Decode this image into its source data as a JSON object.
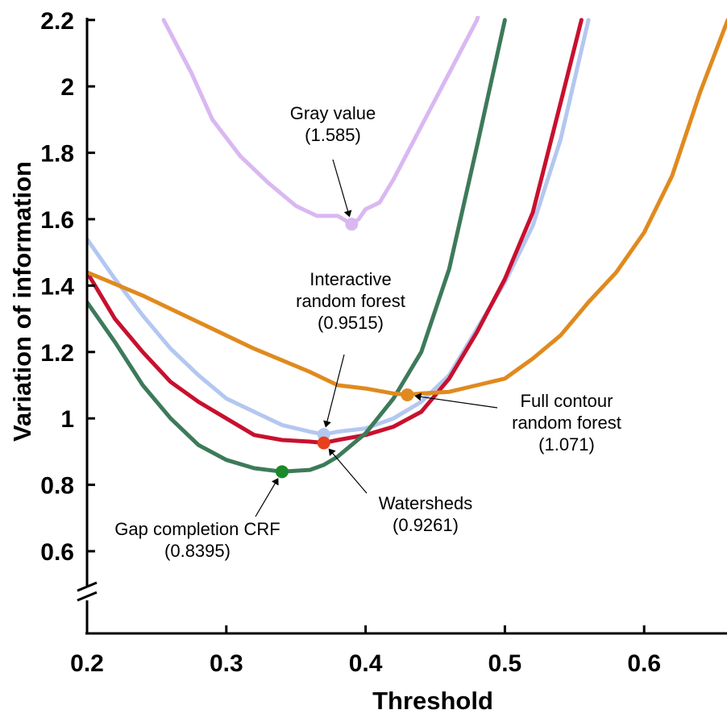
{
  "chart_data": {
    "type": "line",
    "xlabel": "Threshold",
    "ylabel": "Variation of information",
    "xlim": [
      0.2,
      0.66
    ],
    "ylim": [
      0.5,
      2.2
    ],
    "axis_break": true,
    "x_ticks": [
      "0.2",
      "0.3",
      "0.4",
      "0.5",
      "0.6"
    ],
    "y_ticks": [
      "0.6",
      "0.8",
      "1",
      "1.2",
      "1.4",
      "1.6",
      "1.8",
      "2",
      "2.2"
    ],
    "grid": false,
    "series": [
      {
        "color": "#d9b8f2",
        "x": [
          0.255,
          0.26,
          0.275,
          0.29,
          0.31,
          0.33,
          0.35,
          0.365,
          0.38,
          0.39,
          0.395,
          0.4,
          0.41,
          0.42,
          0.44,
          0.46,
          0.48,
          0.49,
          0.497
        ],
        "y": [
          2.2,
          2.16,
          2.04,
          1.9,
          1.79,
          1.71,
          1.64,
          1.61,
          1.61,
          1.585,
          1.6,
          1.63,
          1.65,
          1.72,
          1.88,
          2.04,
          2.2,
          2.36,
          2.45
        ]
      },
      {
        "color": "#b3c7f0",
        "x": [
          0.2,
          0.22,
          0.24,
          0.26,
          0.28,
          0.3,
          0.32,
          0.34,
          0.36,
          0.37,
          0.38,
          0.4,
          0.42,
          0.44,
          0.46,
          0.48,
          0.5,
          0.52,
          0.54,
          0.56
        ],
        "y": [
          1.54,
          1.42,
          1.31,
          1.21,
          1.13,
          1.06,
          1.02,
          0.98,
          0.96,
          0.9515,
          0.96,
          0.97,
          1.0,
          1.05,
          1.13,
          1.27,
          1.41,
          1.58,
          1.84,
          2.2
        ]
      },
      {
        "color": "#c8102e",
        "x": [
          0.2,
          0.22,
          0.24,
          0.26,
          0.28,
          0.3,
          0.32,
          0.34,
          0.36,
          0.37,
          0.38,
          0.4,
          0.42,
          0.44,
          0.46,
          0.48,
          0.5,
          0.52,
          0.54,
          0.555
        ],
        "y": [
          1.44,
          1.3,
          1.2,
          1.11,
          1.05,
          1.0,
          0.95,
          0.935,
          0.93,
          0.9261,
          0.935,
          0.95,
          0.975,
          1.02,
          1.12,
          1.26,
          1.42,
          1.62,
          1.95,
          2.2
        ]
      },
      {
        "color": "#3d7a5a",
        "x": [
          0.2,
          0.22,
          0.24,
          0.26,
          0.28,
          0.3,
          0.32,
          0.34,
          0.36,
          0.37,
          0.38,
          0.4,
          0.42,
          0.44,
          0.46,
          0.48,
          0.5
        ],
        "y": [
          1.35,
          1.23,
          1.1,
          1.0,
          0.92,
          0.875,
          0.85,
          0.8395,
          0.845,
          0.86,
          0.885,
          0.955,
          1.06,
          1.2,
          1.45,
          1.82,
          2.2
        ]
      },
      {
        "color": "#e08a1e",
        "x": [
          0.2,
          0.24,
          0.28,
          0.32,
          0.36,
          0.38,
          0.4,
          0.42,
          0.43,
          0.44,
          0.46,
          0.48,
          0.5,
          0.52,
          0.54,
          0.56,
          0.58,
          0.6,
          0.62,
          0.64,
          0.66
        ],
        "y": [
          1.44,
          1.37,
          1.29,
          1.21,
          1.14,
          1.1,
          1.09,
          1.075,
          1.071,
          1.075,
          1.08,
          1.1,
          1.12,
          1.18,
          1.25,
          1.35,
          1.44,
          1.56,
          1.73,
          1.98,
          2.2
        ]
      }
    ],
    "minima": [
      {
        "x": 0.39,
        "y": 1.585,
        "color": "#d9b8f2"
      },
      {
        "x": 0.37,
        "y": 0.9515,
        "color": "#b3c7f0"
      },
      {
        "x": 0.37,
        "y": 0.9261,
        "color": "#e8401c"
      },
      {
        "x": 0.34,
        "y": 0.8395,
        "color": "#1a8a2a"
      },
      {
        "x": 0.43,
        "y": 1.071,
        "color": "#e08a1e"
      }
    ],
    "annotations": [
      {
        "lines": [
          "Gray value",
          "(1.585)"
        ],
        "target": [
          0.39,
          1.585
        ]
      },
      {
        "lines": [
          "Interactive",
          "random forest",
          "(0.9515)"
        ],
        "target": [
          0.37,
          0.9515
        ]
      },
      {
        "lines": [
          "Full contour",
          "random forest",
          "(1.071)"
        ],
        "target": [
          0.43,
          1.071
        ]
      },
      {
        "lines": [
          "Watersheds",
          "(0.9261)"
        ],
        "target": [
          0.37,
          0.9261
        ]
      },
      {
        "lines": [
          "Gap completion CRF",
          "(0.8395)"
        ],
        "target": [
          0.34,
          0.8395
        ]
      }
    ]
  }
}
